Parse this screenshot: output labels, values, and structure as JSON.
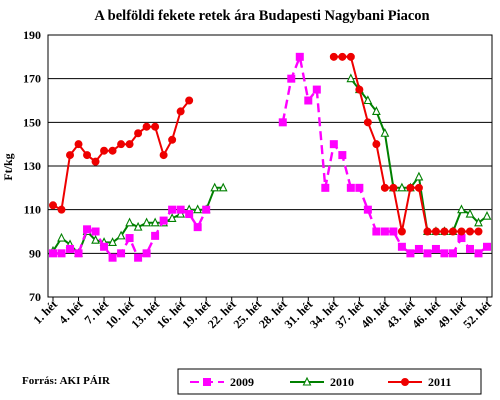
{
  "chart_data": {
    "type": "line",
    "title": "A belföldi fekete retek ára Budapesti Nagybani Piacon",
    "xlabel": "",
    "ylabel": "Ft/kg",
    "ylim": [
      70,
      190
    ],
    "yticks": [
      70,
      90,
      110,
      130,
      150,
      170,
      190
    ],
    "xlim": [
      1,
      52
    ],
    "xtick_labels": [
      "1. hét",
      "4. hét",
      "7. hét",
      "10. hét",
      "13. hét",
      "16. hét",
      "19. hét",
      "22. hét",
      "25. hét",
      "28. hét",
      "31. hét",
      "34. hét",
      "37. hét",
      "40. hét",
      "43. hét",
      "46. hét",
      "49. hét",
      "52. hét"
    ],
    "xtick_weeks": [
      1,
      4,
      7,
      10,
      13,
      16,
      19,
      22,
      25,
      28,
      31,
      34,
      37,
      40,
      43,
      46,
      49,
      52
    ],
    "grid": "horizontal",
    "legend_position": "bottom",
    "source": "Forrás: AKI PÁIR",
    "series": [
      {
        "name": "2009",
        "color": "#ff00ff",
        "marker": "square",
        "dash": true,
        "points": [
          [
            1,
            90
          ],
          [
            2,
            90
          ],
          [
            3,
            92
          ],
          [
            4,
            90
          ],
          [
            5,
            101
          ],
          [
            6,
            100
          ],
          [
            7,
            93
          ],
          [
            8,
            88
          ],
          [
            9,
            90
          ],
          [
            10,
            97
          ],
          [
            11,
            88
          ],
          [
            12,
            90
          ],
          [
            13,
            98
          ],
          [
            14,
            105
          ],
          [
            15,
            110
          ],
          [
            16,
            110
          ],
          [
            17,
            108
          ],
          [
            18,
            102
          ],
          [
            19,
            110
          ],
          null,
          [
            28,
            150
          ],
          [
            29,
            170
          ],
          [
            30,
            180
          ],
          [
            31,
            160
          ],
          [
            32,
            165
          ],
          [
            33,
            120
          ],
          [
            34,
            140
          ],
          [
            35,
            135
          ],
          [
            36,
            120
          ],
          [
            37,
            120
          ],
          [
            38,
            110
          ],
          [
            39,
            100
          ],
          [
            40,
            100
          ],
          [
            41,
            100
          ],
          [
            42,
            93
          ],
          [
            43,
            90
          ],
          [
            44,
            92
          ],
          [
            45,
            90
          ],
          [
            46,
            92
          ],
          [
            47,
            90
          ],
          [
            48,
            90
          ],
          [
            49,
            97
          ],
          [
            50,
            92
          ],
          [
            51,
            90
          ],
          [
            52,
            93
          ]
        ]
      },
      {
        "name": "2010",
        "color": "#008000",
        "marker": "triangle",
        "dash": false,
        "points": [
          [
            1,
            91
          ],
          [
            2,
            97
          ],
          [
            3,
            94
          ],
          [
            4,
            90
          ],
          [
            5,
            100
          ],
          [
            6,
            96
          ],
          [
            7,
            95
          ],
          [
            8,
            95
          ],
          [
            9,
            98
          ],
          [
            10,
            104
          ],
          [
            11,
            102
          ],
          [
            12,
            104
          ],
          [
            13,
            104
          ],
          [
            14,
            104
          ],
          [
            15,
            106
          ],
          [
            16,
            108
          ],
          [
            17,
            110
          ],
          [
            18,
            110
          ],
          [
            19,
            110
          ],
          [
            20,
            120
          ],
          [
            21,
            120
          ],
          null,
          [
            36,
            170
          ],
          [
            37,
            165
          ],
          [
            38,
            160
          ],
          [
            39,
            155
          ],
          [
            40,
            145
          ],
          [
            41,
            120
          ],
          [
            42,
            120
          ],
          [
            43,
            120
          ],
          [
            44,
            125
          ],
          [
            45,
            100
          ],
          [
            46,
            100
          ],
          [
            47,
            100
          ],
          [
            48,
            100
          ],
          [
            49,
            110
          ],
          [
            50,
            108
          ],
          [
            51,
            104
          ],
          [
            52,
            107
          ]
        ]
      },
      {
        "name": "2011",
        "color": "#ee0000",
        "marker": "circle",
        "dash": false,
        "points": [
          [
            1,
            112
          ],
          [
            2,
            110
          ],
          [
            3,
            135
          ],
          [
            4,
            140
          ],
          [
            5,
            135
          ],
          [
            6,
            132
          ],
          [
            7,
            137
          ],
          [
            8,
            137
          ],
          [
            9,
            140
          ],
          [
            10,
            140
          ],
          [
            11,
            145
          ],
          [
            12,
            148
          ],
          [
            13,
            148
          ],
          [
            14,
            135
          ],
          [
            15,
            142
          ],
          [
            16,
            155
          ],
          [
            17,
            160
          ],
          null,
          [
            34,
            180
          ],
          [
            35,
            180
          ],
          [
            36,
            180
          ],
          [
            37,
            165
          ],
          [
            38,
            150
          ],
          [
            39,
            140
          ],
          [
            40,
            120
          ],
          [
            41,
            120
          ],
          [
            42,
            100
          ],
          [
            43,
            120
          ],
          [
            44,
            120
          ],
          [
            45,
            100
          ],
          [
            46,
            100
          ],
          [
            47,
            100
          ],
          [
            48,
            100
          ],
          [
            49,
            100
          ],
          [
            50,
            100
          ],
          [
            51,
            100
          ]
        ]
      }
    ]
  }
}
